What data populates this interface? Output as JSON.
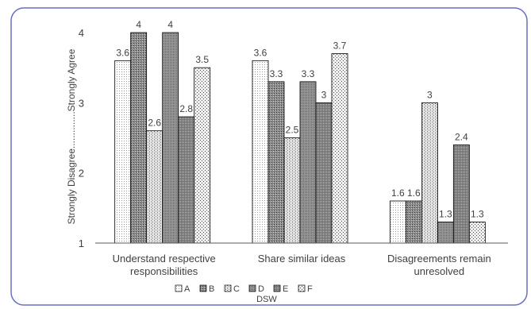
{
  "chart_data": {
    "type": "bar",
    "title": "",
    "xlabel": "",
    "ylabel": "Strongly Disagree..............Strongly Agree",
    "ylim": [
      1,
      4
    ],
    "yticks": [
      1,
      2,
      3,
      4
    ],
    "categories": [
      [
        "Understand respective",
        "responsibilities"
      ],
      [
        "Share similar ideas"
      ],
      [
        "Disagreements remain",
        "unresolved"
      ]
    ],
    "series": [
      {
        "name": "A",
        "values": [
          3.6,
          3.6,
          1.6
        ]
      },
      {
        "name": "B",
        "values": [
          4,
          3.3,
          1.6
        ]
      },
      {
        "name": "C",
        "values": [
          2.6,
          2.5,
          3
        ]
      },
      {
        "name": "D",
        "values": [
          4,
          3.3,
          1.3
        ]
      },
      {
        "name": "E",
        "values": [
          2.8,
          3,
          2.4
        ]
      },
      {
        "name": "F",
        "values": [
          3.5,
          3.7,
          1.3
        ]
      }
    ],
    "legend_title": "DSW",
    "legend_position": "bottom",
    "grid": false,
    "data_labels": true
  },
  "colors": {
    "border": "#6a6fc2",
    "axis": "#595959",
    "bar_stroke": "#000000",
    "text": "#404040"
  }
}
